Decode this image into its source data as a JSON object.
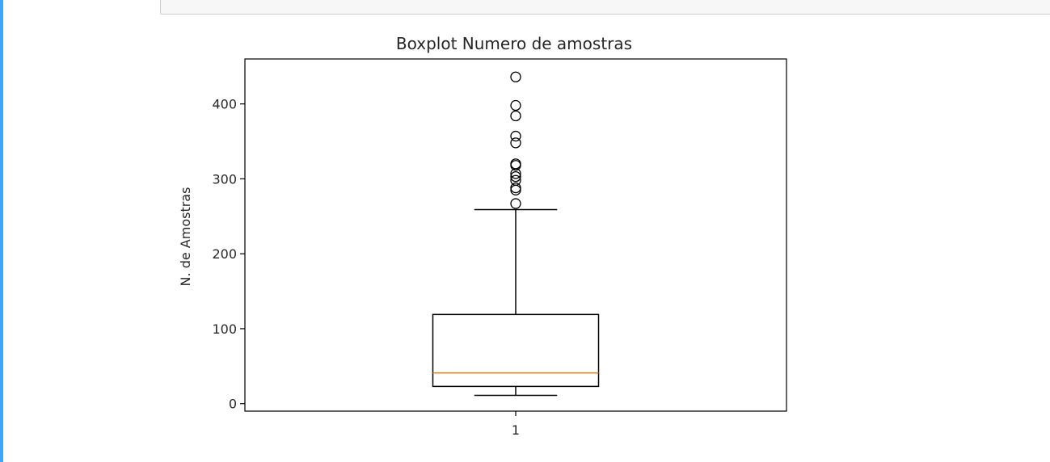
{
  "notebook": {
    "cell_accent_color": "#42a5f5"
  },
  "chart_data": {
    "type": "boxplot",
    "title": "Boxplot Numero de amostras",
    "xlabel": "",
    "ylabel": "N. de Amostras",
    "categories": [
      "1"
    ],
    "yticks": [
      0,
      100,
      200,
      300,
      400
    ],
    "ytick_labels": [
      "0",
      "100",
      "200",
      "300",
      "400"
    ],
    "ylim": [
      -10,
      460
    ],
    "grid": false,
    "boxes": [
      {
        "category": "1",
        "whisker_low": 11,
        "q1": 23,
        "median": 41,
        "q3": 119,
        "whisker_high": 259,
        "outliers": [
          267,
          285,
          288,
          298,
          303,
          307,
          318,
          320,
          348,
          357,
          384,
          398,
          436
        ]
      }
    ],
    "colors": {
      "box": "#000000",
      "median": "#ff7f0e",
      "outlier_edge": "#000000"
    }
  }
}
